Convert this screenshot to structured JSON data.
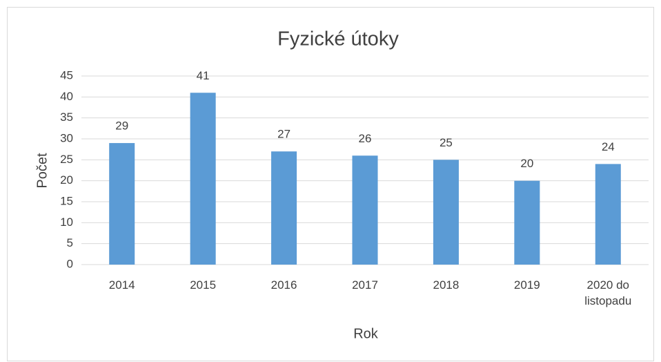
{
  "chart_data": {
    "type": "bar",
    "title": "Fyzické útoky",
    "x_label": "Rok",
    "y_label": "Počet",
    "categories": [
      "2014",
      "2015",
      "2016",
      "2017",
      "2018",
      "2019",
      "2020 do listopadu"
    ],
    "values": [
      29,
      41,
      27,
      26,
      25,
      20,
      24
    ],
    "color": "#5b9bd5",
    "ylim": [
      0,
      45
    ],
    "yticks": [
      0,
      5,
      10,
      15,
      20,
      25,
      30,
      35,
      40,
      45
    ],
    "grid": true
  }
}
